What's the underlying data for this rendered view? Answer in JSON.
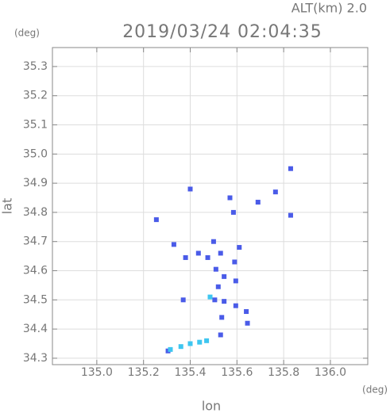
{
  "chart_data": {
    "type": "scatter",
    "title": "2019/03/24 02:04:35",
    "annotation": "ALT(km) 2.0",
    "y_unit": "(deg)",
    "x_unit": "(deg)",
    "x_label": "lon",
    "y_label": "lat",
    "xlim": [
      134.81,
      136.16
    ],
    "ylim": [
      34.278,
      35.365
    ],
    "xticks": [
      {
        "value": 135.0,
        "label": "135.0"
      },
      135.2,
      135.4,
      135.6,
      135.8,
      {
        "value": 136.0,
        "label": "136.0"
      }
    ],
    "yticks": [
      34.3,
      34.4,
      34.5,
      34.6,
      34.7,
      34.8,
      34.9,
      {
        "value": 35.0,
        "label": "35.0"
      },
      35.1,
      35.2,
      35.3
    ],
    "grid": true,
    "series": [
      {
        "color": "#4a5be8",
        "x": [
          135.83,
          135.765,
          135.4,
          135.57,
          135.585,
          135.69,
          135.83,
          135.255,
          135.5,
          135.33,
          135.38,
          135.435,
          135.475,
          135.53,
          135.61,
          135.59,
          135.51,
          135.545,
          135.52,
          135.595,
          135.505,
          135.37,
          135.545,
          135.595,
          135.64,
          135.535,
          135.645,
          135.53,
          135.305
        ],
        "y": [
          34.95,
          34.87,
          34.88,
          34.85,
          34.8,
          34.835,
          34.79,
          34.775,
          34.7,
          34.69,
          34.645,
          34.66,
          34.645,
          34.66,
          34.68,
          34.63,
          34.605,
          34.58,
          34.545,
          34.565,
          34.5,
          34.5,
          34.495,
          34.48,
          34.46,
          34.44,
          34.42,
          34.38,
          34.325
        ]
      },
      {
        "color": "#3ec6f0",
        "x": [
          135.315,
          135.36,
          135.4,
          135.44,
          135.47,
          135.485
        ],
        "y": [
          34.33,
          34.34,
          34.35,
          34.355,
          34.36,
          34.51
        ]
      }
    ]
  }
}
